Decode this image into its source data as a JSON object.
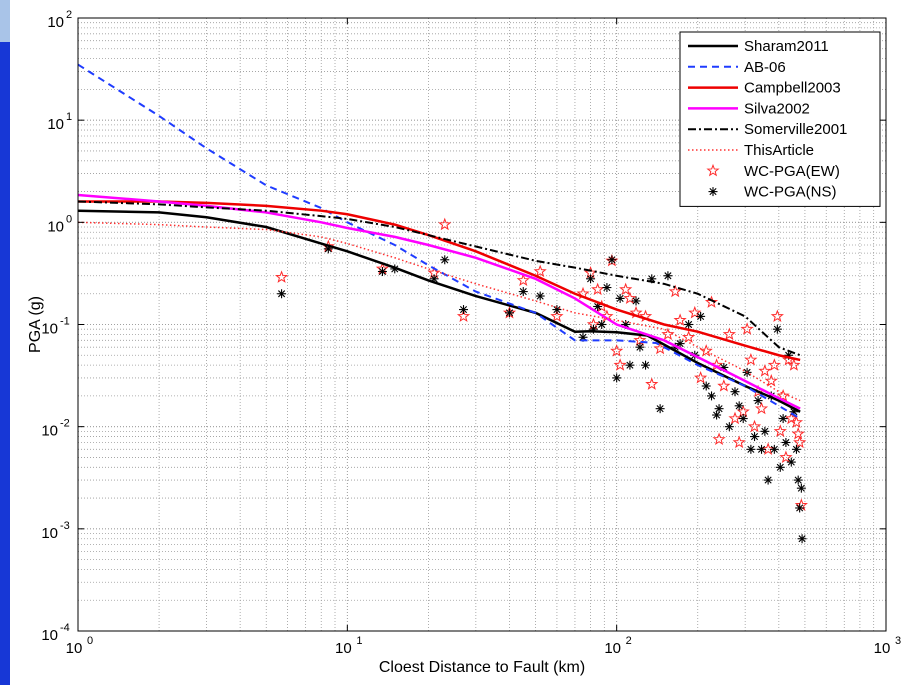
{
  "chart_data": {
    "type": "scatter",
    "title": "",
    "xlabel": "Cloest Distance to Fault (km)",
    "ylabel": "PGA  (g)",
    "xscale": "log",
    "yscale": "log",
    "xlim": [
      1,
      1000
    ],
    "ylim": [
      0.0001,
      100
    ],
    "grid": true,
    "legend_position": "top-right",
    "x_ticks": [
      {
        "value": 1,
        "base": "10",
        "exp": "0"
      },
      {
        "value": 10,
        "base": "10",
        "exp": "1"
      },
      {
        "value": 100,
        "base": "10",
        "exp": "2"
      },
      {
        "value": 1000,
        "base": "10",
        "exp": "3"
      }
    ],
    "y_ticks": [
      {
        "value": 0.0001,
        "base": "10",
        "exp": "-4"
      },
      {
        "value": 0.001,
        "base": "10",
        "exp": "-3"
      },
      {
        "value": 0.01,
        "base": "10",
        "exp": "-2"
      },
      {
        "value": 0.1,
        "base": "10",
        "exp": "-1"
      },
      {
        "value": 1,
        "base": "10",
        "exp": "0"
      },
      {
        "value": 10,
        "base": "10",
        "exp": "1"
      },
      {
        "value": 100,
        "base": "10",
        "exp": "2"
      }
    ],
    "series": [
      {
        "name": "Sharam2011",
        "kind": "line",
        "color": "#000000",
        "dash": "solid",
        "width": 2.5,
        "points": [
          [
            1,
            1.3
          ],
          [
            2,
            1.25
          ],
          [
            3,
            1.12
          ],
          [
            5,
            0.9
          ],
          [
            8,
            0.62
          ],
          [
            10,
            0.52
          ],
          [
            15,
            0.36
          ],
          [
            20,
            0.27
          ],
          [
            30,
            0.19
          ],
          [
            50,
            0.13
          ],
          [
            70,
            0.085
          ],
          [
            80,
            0.086
          ],
          [
            100,
            0.084
          ],
          [
            130,
            0.078
          ],
          [
            200,
            0.042
          ],
          [
            300,
            0.025
          ],
          [
            400,
            0.018
          ],
          [
            480,
            0.014
          ]
        ]
      },
      {
        "name": "AB-06",
        "kind": "line",
        "color": "#1f3cff",
        "dash": "7,5",
        "width": 2,
        "points": [
          [
            1,
            35
          ],
          [
            2,
            11
          ],
          [
            3,
            5.3
          ],
          [
            5,
            2.3
          ],
          [
            8,
            1.38
          ],
          [
            10,
            1.0
          ],
          [
            15,
            0.6
          ],
          [
            20,
            0.38
          ],
          [
            30,
            0.21
          ],
          [
            50,
            0.13
          ],
          [
            70,
            0.07
          ],
          [
            100,
            0.07
          ],
          [
            140,
            0.066
          ],
          [
            200,
            0.04
          ],
          [
            300,
            0.025
          ],
          [
            400,
            0.016
          ],
          [
            480,
            0.012
          ]
        ]
      },
      {
        "name": "Campbell2003",
        "kind": "line",
        "color": "#ee0000",
        "dash": "solid",
        "width": 2.5,
        "points": [
          [
            1,
            1.6
          ],
          [
            2,
            1.6
          ],
          [
            3,
            1.55
          ],
          [
            5,
            1.45
          ],
          [
            8,
            1.3
          ],
          [
            10,
            1.2
          ],
          [
            15,
            0.95
          ],
          [
            20,
            0.75
          ],
          [
            30,
            0.52
          ],
          [
            50,
            0.3
          ],
          [
            70,
            0.2
          ],
          [
            100,
            0.14
          ],
          [
            150,
            0.1
          ],
          [
            200,
            0.085
          ],
          [
            300,
            0.062
          ],
          [
            400,
            0.05
          ],
          [
            480,
            0.045
          ]
        ]
      },
      {
        "name": "Silva2002",
        "kind": "line",
        "color": "#ff00ff",
        "dash": "solid",
        "width": 2.5,
        "points": [
          [
            1,
            1.85
          ],
          [
            2,
            1.6
          ],
          [
            3,
            1.45
          ],
          [
            5,
            1.25
          ],
          [
            8,
            1.0
          ],
          [
            10,
            0.88
          ],
          [
            15,
            0.72
          ],
          [
            20,
            0.6
          ],
          [
            30,
            0.45
          ],
          [
            50,
            0.28
          ],
          [
            70,
            0.18
          ],
          [
            100,
            0.1
          ],
          [
            150,
            0.07
          ],
          [
            200,
            0.048
          ],
          [
            300,
            0.028
          ],
          [
            400,
            0.019
          ],
          [
            480,
            0.015
          ]
        ]
      },
      {
        "name": "Somerville2001",
        "kind": "line",
        "color": "#000000",
        "dash": "8,3,2,3",
        "width": 2,
        "points": [
          [
            1,
            1.6
          ],
          [
            2,
            1.5
          ],
          [
            3,
            1.4
          ],
          [
            5,
            1.3
          ],
          [
            8,
            1.15
          ],
          [
            10,
            1.08
          ],
          [
            15,
            0.9
          ],
          [
            20,
            0.75
          ],
          [
            30,
            0.58
          ],
          [
            50,
            0.42
          ],
          [
            70,
            0.36
          ],
          [
            100,
            0.3
          ],
          [
            150,
            0.25
          ],
          [
            200,
            0.2
          ],
          [
            300,
            0.12
          ],
          [
            400,
            0.06
          ],
          [
            480,
            0.05
          ]
        ]
      },
      {
        "name": "ThisArticle",
        "kind": "line",
        "color": "#ff3030",
        "dash": "1.5,2.5",
        "width": 1.5,
        "points": [
          [
            1,
            1.0
          ],
          [
            2,
            0.95
          ],
          [
            3,
            0.9
          ],
          [
            5,
            0.85
          ],
          [
            8,
            0.72
          ],
          [
            10,
            0.62
          ],
          [
            15,
            0.45
          ],
          [
            20,
            0.35
          ],
          [
            30,
            0.25
          ],
          [
            50,
            0.17
          ],
          [
            70,
            0.13
          ],
          [
            100,
            0.11
          ],
          [
            150,
            0.09
          ],
          [
            200,
            0.06
          ],
          [
            300,
            0.035
          ],
          [
            400,
            0.022
          ],
          [
            480,
            0.018
          ]
        ]
      },
      {
        "name": "WC-PGA(EW)",
        "kind": "marker",
        "marker": "star",
        "color": "#ff2a2a",
        "points": [
          [
            5.7,
            0.29
          ],
          [
            8.5,
            0.58
          ],
          [
            13.5,
            0.35
          ],
          [
            21,
            0.32
          ],
          [
            23,
            0.95
          ],
          [
            27,
            0.12
          ],
          [
            40,
            0.13
          ],
          [
            45,
            0.27
          ],
          [
            52,
            0.33
          ],
          [
            60,
            0.12
          ],
          [
            75,
            0.2
          ],
          [
            80,
            0.32
          ],
          [
            82,
            0.1
          ],
          [
            85,
            0.22
          ],
          [
            88,
            0.15
          ],
          [
            92,
            0.12
          ],
          [
            96,
            0.42
          ],
          [
            100,
            0.055
          ],
          [
            103,
            0.04
          ],
          [
            108,
            0.22
          ],
          [
            112,
            0.18
          ],
          [
            118,
            0.13
          ],
          [
            122,
            0.07
          ],
          [
            128,
            0.12
          ],
          [
            135,
            0.026
          ],
          [
            145,
            0.058
          ],
          [
            155,
            0.08
          ],
          [
            165,
            0.21
          ],
          [
            172,
            0.11
          ],
          [
            185,
            0.075
          ],
          [
            195,
            0.13
          ],
          [
            205,
            0.03
          ],
          [
            215,
            0.055
          ],
          [
            225,
            0.165
          ],
          [
            235,
            0.04
          ],
          [
            240,
            0.0075
          ],
          [
            250,
            0.025
          ],
          [
            262,
            0.08
          ],
          [
            275,
            0.012
          ],
          [
            285,
            0.007
          ],
          [
            295,
            0.014
          ],
          [
            305,
            0.09
          ],
          [
            315,
            0.045
          ],
          [
            325,
            0.01
          ],
          [
            335,
            0.022
          ],
          [
            345,
            0.015
          ],
          [
            355,
            0.035
          ],
          [
            365,
            0.006
          ],
          [
            375,
            0.028
          ],
          [
            385,
            0.04
          ],
          [
            395,
            0.12
          ],
          [
            405,
            0.009
          ],
          [
            415,
            0.02
          ],
          [
            425,
            0.005
          ],
          [
            435,
            0.045
          ],
          [
            445,
            0.012
          ],
          [
            455,
            0.04
          ],
          [
            465,
            0.011
          ],
          [
            472,
            0.0085
          ],
          [
            478,
            0.007
          ],
          [
            485,
            0.0017
          ]
        ]
      },
      {
        "name": "WC-PGA(NS)",
        "kind": "marker",
        "marker": "asterisk",
        "color": "#000000",
        "points": [
          [
            5.7,
            0.2
          ],
          [
            8.5,
            0.55
          ],
          [
            13.5,
            0.33
          ],
          [
            15,
            0.35
          ],
          [
            21,
            0.28
          ],
          [
            23,
            0.43
          ],
          [
            27,
            0.14
          ],
          [
            40,
            0.13
          ],
          [
            45,
            0.21
          ],
          [
            52,
            0.19
          ],
          [
            60,
            0.14
          ],
          [
            75,
            0.075
          ],
          [
            80,
            0.28
          ],
          [
            82,
            0.09
          ],
          [
            85,
            0.15
          ],
          [
            88,
            0.1
          ],
          [
            92,
            0.23
          ],
          [
            96,
            0.43
          ],
          [
            100,
            0.03
          ],
          [
            103,
            0.18
          ],
          [
            108,
            0.1
          ],
          [
            112,
            0.04
          ],
          [
            118,
            0.17
          ],
          [
            122,
            0.06
          ],
          [
            128,
            0.04
          ],
          [
            135,
            0.28
          ],
          [
            145,
            0.015
          ],
          [
            155,
            0.3
          ],
          [
            165,
            0.06
          ],
          [
            172,
            0.065
          ],
          [
            185,
            0.1
          ],
          [
            195,
            0.05
          ],
          [
            205,
            0.12
          ],
          [
            215,
            0.025
          ],
          [
            225,
            0.02
          ],
          [
            235,
            0.013
          ],
          [
            240,
            0.015
          ],
          [
            250,
            0.038
          ],
          [
            262,
            0.01
          ],
          [
            275,
            0.022
          ],
          [
            285,
            0.016
          ],
          [
            295,
            0.012
          ],
          [
            305,
            0.034
          ],
          [
            315,
            0.006
          ],
          [
            325,
            0.008
          ],
          [
            335,
            0.018
          ],
          [
            345,
            0.006
          ],
          [
            355,
            0.009
          ],
          [
            365,
            0.003
          ],
          [
            375,
            0.02
          ],
          [
            385,
            0.006
          ],
          [
            395,
            0.09
          ],
          [
            405,
            0.004
          ],
          [
            415,
            0.012
          ],
          [
            425,
            0.007
          ],
          [
            435,
            0.05
          ],
          [
            445,
            0.0045
          ],
          [
            455,
            0.014
          ],
          [
            465,
            0.006
          ],
          [
            472,
            0.003
          ],
          [
            478,
            0.0016
          ],
          [
            485,
            0.0025
          ],
          [
            488,
            0.0008
          ]
        ]
      }
    ]
  }
}
